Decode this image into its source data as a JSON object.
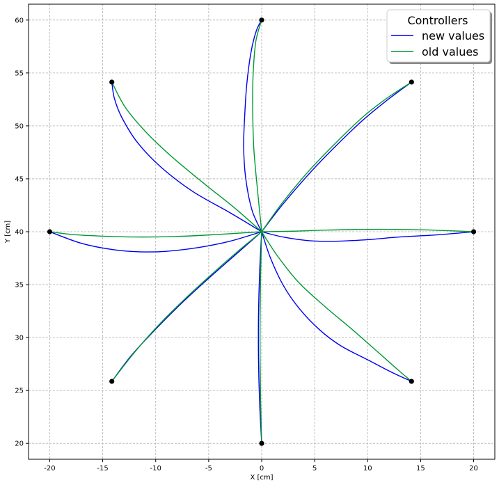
{
  "chart_data": {
    "type": "line",
    "title": "",
    "xlabel": "X [cm]",
    "ylabel": "Y [cm]",
    "xlim": [
      -22,
      22
    ],
    "ylim": [
      18.5,
      61.5
    ],
    "xticks": [
      -20,
      -15,
      -10,
      -5,
      0,
      5,
      10,
      15,
      20
    ],
    "yticks": [
      20,
      25,
      30,
      35,
      40,
      45,
      50,
      55,
      60
    ],
    "grid": true,
    "legend": {
      "title": "Controllers",
      "placement": "top-right"
    },
    "center": [
      0,
      40
    ],
    "colors": {
      "new": "#0000ee",
      "old": "#009933",
      "markers": "#000000"
    },
    "targets": [
      {
        "x": 0,
        "y": 60
      },
      {
        "x": 14.14,
        "y": 54.14
      },
      {
        "x": 20,
        "y": 40
      },
      {
        "x": 14.14,
        "y": 25.86
      },
      {
        "x": 0,
        "y": 20
      },
      {
        "x": -14.14,
        "y": 25.86
      },
      {
        "x": -20,
        "y": 40
      },
      {
        "x": -14.14,
        "y": 54.14
      }
    ],
    "series": [
      {
        "name": "new values",
        "color": "#0000ee",
        "paths": [
          [
            [
              0,
              40
            ],
            [
              -0.9,
              42
            ],
            [
              -1.5,
              45
            ],
            [
              -1.7,
              48
            ],
            [
              -1.6,
              51
            ],
            [
              -1.4,
              54
            ],
            [
              -1.0,
              57
            ],
            [
              -0.5,
              59
            ],
            [
              0,
              60
            ]
          ],
          [
            [
              0,
              40
            ],
            [
              2,
              42.6
            ],
            [
              4.5,
              45.5
            ],
            [
              7,
              48.1
            ],
            [
              9.5,
              50.5
            ],
            [
              11.8,
              52.4
            ],
            [
              14.14,
              54.14
            ]
          ],
          [
            [
              0,
              40
            ],
            [
              2,
              39.5
            ],
            [
              4.5,
              39.15
            ],
            [
              7,
              39.1
            ],
            [
              10,
              39.25
            ],
            [
              13,
              39.5
            ],
            [
              16.5,
              39.7
            ],
            [
              20,
              40
            ]
          ],
          [
            [
              0,
              40
            ],
            [
              0.8,
              37.6
            ],
            [
              2,
              35
            ],
            [
              3.5,
              32.8
            ],
            [
              5.5,
              30.7
            ],
            [
              7.5,
              29.2
            ],
            [
              10,
              27.9
            ],
            [
              12.3,
              26.7
            ],
            [
              14.14,
              25.86
            ]
          ],
          [
            [
              0,
              40
            ],
            [
              -0.2,
              36
            ],
            [
              -0.3,
              32
            ],
            [
              -0.3,
              28
            ],
            [
              -0.2,
              24
            ],
            [
              0,
              20
            ]
          ],
          [
            [
              0,
              40
            ],
            [
              -2.5,
              37.8
            ],
            [
              -5,
              35.6
            ],
            [
              -7.5,
              33.3
            ],
            [
              -10,
              30.8
            ],
            [
              -12.3,
              28.3
            ],
            [
              -14.14,
              25.86
            ]
          ],
          [
            [
              0,
              40
            ],
            [
              -3,
              39.1
            ],
            [
              -6,
              38.5
            ],
            [
              -9,
              38.15
            ],
            [
              -11.5,
              38.1
            ],
            [
              -14,
              38.3
            ],
            [
              -17,
              38.9
            ],
            [
              -20,
              40
            ]
          ],
          [
            [
              0,
              40
            ],
            [
              -3,
              41.8
            ],
            [
              -6.5,
              43.8
            ],
            [
              -9.5,
              46.1
            ],
            [
              -11.7,
              48.4
            ],
            [
              -13.2,
              50.8
            ],
            [
              -13.9,
              52.6
            ],
            [
              -14.14,
              54.14
            ]
          ]
        ]
      },
      {
        "name": "old values",
        "color": "#009933",
        "paths": [
          [
            [
              0,
              40
            ],
            [
              -0.4,
              44
            ],
            [
              -0.75,
              48
            ],
            [
              -0.85,
              52
            ],
            [
              -0.8,
              55
            ],
            [
              -0.55,
              58
            ],
            [
              0,
              60
            ]
          ],
          [
            [
              0,
              40
            ],
            [
              2,
              42.8
            ],
            [
              4.5,
              45.8
            ],
            [
              7,
              48.4
            ],
            [
              9.5,
              50.8
            ],
            [
              11.8,
              52.6
            ],
            [
              14.14,
              54.14
            ]
          ],
          [
            [
              0,
              40
            ],
            [
              3,
              40.05
            ],
            [
              6,
              40.15
            ],
            [
              10,
              40.22
            ],
            [
              14,
              40.2
            ],
            [
              17,
              40.12
            ],
            [
              20,
              40
            ]
          ],
          [
            [
              0,
              40
            ],
            [
              1.5,
              37.7
            ],
            [
              3.5,
              35.2
            ],
            [
              6,
              32.9
            ],
            [
              8.5,
              30.8
            ],
            [
              11,
              28.6
            ],
            [
              12.8,
              27
            ],
            [
              14.14,
              25.86
            ]
          ],
          [
            [
              0,
              40
            ],
            [
              -0.1,
              36
            ],
            [
              -0.15,
              32
            ],
            [
              -0.15,
              28
            ],
            [
              -0.1,
              24
            ],
            [
              0,
              20
            ]
          ],
          [
            [
              0,
              40
            ],
            [
              -2.3,
              38.1
            ],
            [
              -4.8,
              35.9
            ],
            [
              -7.3,
              33.6
            ],
            [
              -9.8,
              31.1
            ],
            [
              -12,
              28.6
            ],
            [
              -14.14,
              25.86
            ]
          ],
          [
            [
              0,
              40
            ],
            [
              -4,
              39.75
            ],
            [
              -8,
              39.55
            ],
            [
              -12,
              39.5
            ],
            [
              -15.5,
              39.6
            ],
            [
              -18,
              39.75
            ],
            [
              -20,
              40
            ]
          ],
          [
            [
              0,
              40
            ],
            [
              -2.5,
              42.2
            ],
            [
              -5.5,
              44.6
            ],
            [
              -8.5,
              47.1
            ],
            [
              -11,
              49.5
            ],
            [
              -12.9,
              51.8
            ],
            [
              -14.14,
              54.14
            ]
          ]
        ]
      }
    ]
  }
}
